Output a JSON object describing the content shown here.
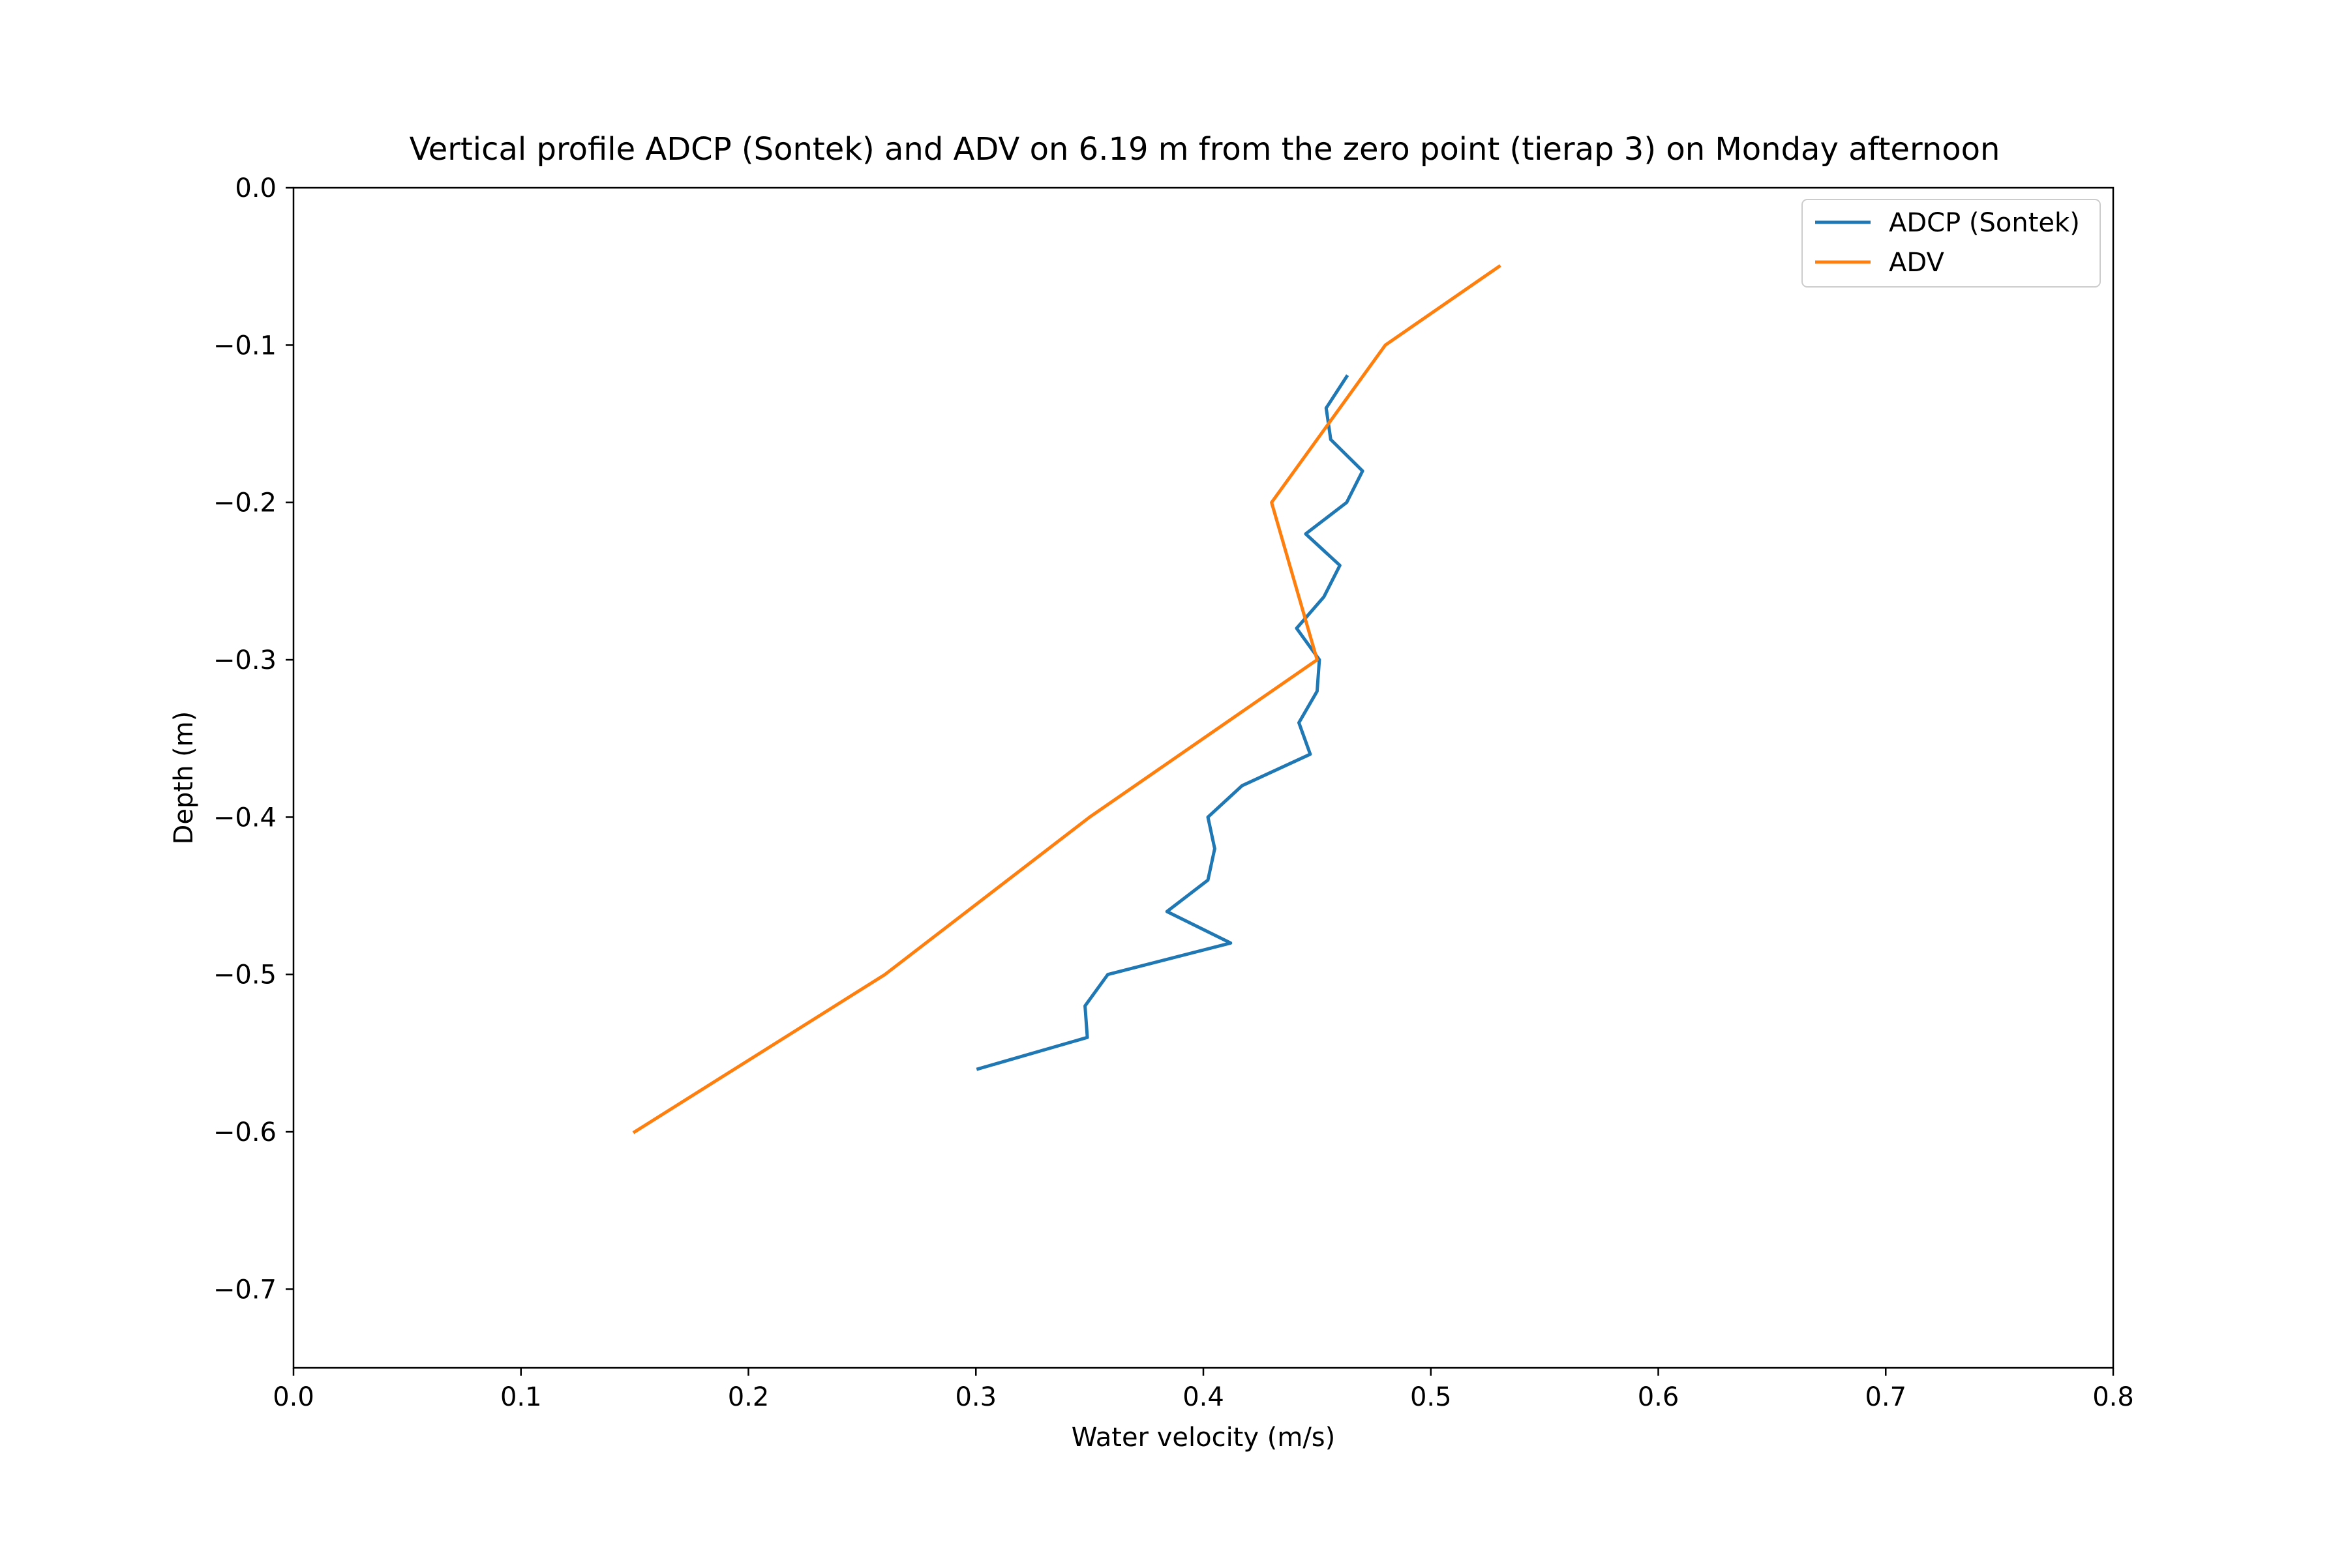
{
  "chart_data": {
    "type": "line",
    "title": "Vertical profile ADCP (Sontek) and ADV on 6.19 m from the zero point (tierap 3) on Monday afternoon",
    "xlabel": "Water velocity (m/s)",
    "ylabel": "Depth (m)",
    "xlim": [
      0.0,
      0.8
    ],
    "ylim": [
      -0.75,
      0.0
    ],
    "x_ticks": [
      "0.0",
      "0.1",
      "0.2",
      "0.3",
      "0.4",
      "0.5",
      "0.6",
      "0.7",
      "0.8"
    ],
    "y_ticks": [
      "0.0",
      "−0.1",
      "−0.2",
      "−0.3",
      "−0.4",
      "−0.5",
      "−0.6",
      "−0.7"
    ],
    "grid": false,
    "legend_position": "upper right",
    "series": [
      {
        "name": "ADCP (Sontek)",
        "color": "#1f77b4",
        "points": [
          {
            "x": 0.463,
            "y": -0.12
          },
          {
            "x": 0.454,
            "y": -0.14
          },
          {
            "x": 0.456,
            "y": -0.16
          },
          {
            "x": 0.47,
            "y": -0.18
          },
          {
            "x": 0.463,
            "y": -0.2
          },
          {
            "x": 0.445,
            "y": -0.22
          },
          {
            "x": 0.46,
            "y": -0.24
          },
          {
            "x": 0.453,
            "y": -0.26
          },
          {
            "x": 0.441,
            "y": -0.28
          },
          {
            "x": 0.451,
            "y": -0.3
          },
          {
            "x": 0.45,
            "y": -0.32
          },
          {
            "x": 0.442,
            "y": -0.34
          },
          {
            "x": 0.447,
            "y": -0.36
          },
          {
            "x": 0.417,
            "y": -0.38
          },
          {
            "x": 0.402,
            "y": -0.4
          },
          {
            "x": 0.405,
            "y": -0.42
          },
          {
            "x": 0.402,
            "y": -0.44
          },
          {
            "x": 0.384,
            "y": -0.46
          },
          {
            "x": 0.412,
            "y": -0.48
          },
          {
            "x": 0.358,
            "y": -0.5
          },
          {
            "x": 0.348,
            "y": -0.52
          },
          {
            "x": 0.349,
            "y": -0.54
          },
          {
            "x": 0.301,
            "y": -0.56
          }
        ]
      },
      {
        "name": "ADV",
        "color": "#ff7f0e",
        "points": [
          {
            "x": 0.53,
            "y": -0.05
          },
          {
            "x": 0.48,
            "y": -0.1
          },
          {
            "x": 0.43,
            "y": -0.2
          },
          {
            "x": 0.45,
            "y": -0.3
          },
          {
            "x": 0.35,
            "y": -0.4
          },
          {
            "x": 0.26,
            "y": -0.5
          },
          {
            "x": 0.15,
            "y": -0.6
          }
        ]
      }
    ]
  }
}
